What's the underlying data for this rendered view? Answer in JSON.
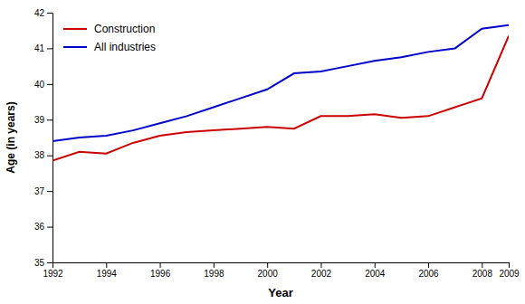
{
  "chart_data": {
    "type": "line",
    "x": [
      1992,
      1993,
      1994,
      1995,
      1996,
      1997,
      1998,
      1999,
      2000,
      2001,
      2002,
      2003,
      2004,
      2005,
      2006,
      2007,
      2008,
      2009
    ],
    "series": [
      {
        "name": "Construction",
        "color": "#cc0000",
        "values": [
          37.85,
          38.1,
          38.05,
          38.35,
          38.55,
          38.65,
          38.7,
          38.75,
          38.8,
          38.75,
          39.1,
          39.1,
          39.15,
          39.05,
          39.1,
          39.35,
          39.6,
          41.35
        ]
      },
      {
        "name": "All industries",
        "color": "#0000cc",
        "values": [
          38.4,
          38.5,
          38.55,
          38.7,
          38.9,
          39.1,
          39.35,
          39.6,
          39.85,
          40.3,
          40.35,
          40.5,
          40.65,
          40.75,
          40.9,
          41.0,
          41.55,
          41.65
        ]
      }
    ],
    "xlabel": "Year",
    "ylabel": "Age (in years)",
    "xlim": [
      1992,
      2009
    ],
    "xticks": [
      1992,
      1994,
      1996,
      1998,
      2000,
      2002,
      2004,
      2006,
      2008,
      2009
    ],
    "ylim": [
      35,
      42
    ],
    "yticks": [
      35,
      36,
      37,
      38,
      39,
      40,
      41,
      42
    ],
    "grid": false,
    "legend": "upper left"
  }
}
